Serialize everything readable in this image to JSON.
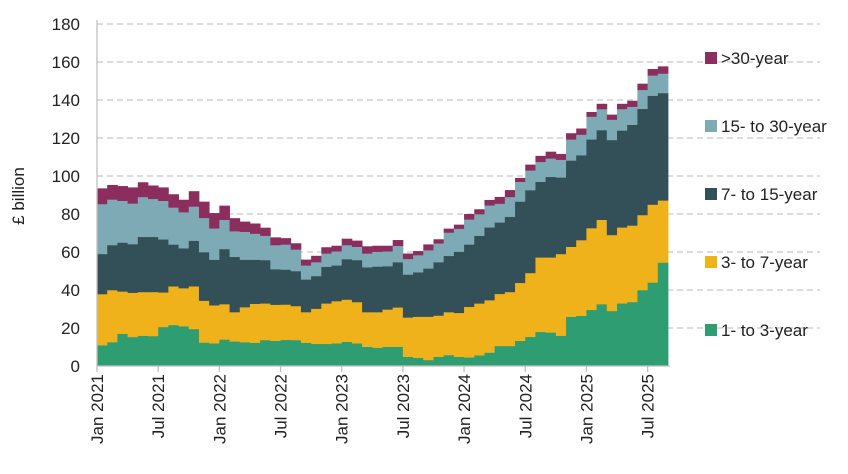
{
  "chart_data": {
    "type": "bar",
    "stacked": true,
    "style": "stepped stacked area",
    "title": "",
    "xlabel": "",
    "ylabel": "£ billion",
    "ylim": [
      0,
      180
    ],
    "yticks": [
      0,
      20,
      40,
      60,
      80,
      100,
      120,
      140,
      160,
      180
    ],
    "grid": "horizontal dashed",
    "legend_placement": "right",
    "x": [
      "Jan 2021",
      "Feb 2021",
      "Mar 2021",
      "Apr 2021",
      "May 2021",
      "Jun 2021",
      "Jul 2021",
      "Aug 2021",
      "Sep 2021",
      "Oct 2021",
      "Nov 2021",
      "Dec 2021",
      "Jan 2022",
      "Feb 2022",
      "Mar 2022",
      "Apr 2022",
      "May 2022",
      "Jun 2022",
      "Jul 2022",
      "Aug 2022",
      "Sep 2022",
      "Oct 2022",
      "Nov 2022",
      "Dec 2022",
      "Jan 2023",
      "Feb 2023",
      "Mar 2023",
      "Apr 2023",
      "May 2023",
      "Jun 2023",
      "Jul 2023",
      "Aug 2023",
      "Sep 2023",
      "Oct 2023",
      "Nov 2023",
      "Dec 2023",
      "Jan 2024",
      "Feb 2024",
      "Mar 2024",
      "Apr 2024",
      "May 2024",
      "Jun 2024",
      "Jul 2024",
      "Aug 2024",
      "Sep 2024",
      "Oct 2024",
      "Nov 2024",
      "Dec 2024",
      "Jan 2025",
      "Feb 2025",
      "Mar 2025",
      "Apr 2025",
      "May 2025",
      "Jun 2025",
      "Jul 2025",
      "Aug 2025"
    ],
    "xtick_labels": [
      "Jan 2021",
      "Jul 2021",
      "Jan 2022",
      "Jul 2022",
      "Jan 2023",
      "Jul 2023",
      "Jan 2024",
      "Jul 2024",
      "Jan 2025",
      "Jul 2025"
    ],
    "series": [
      {
        "name": "1- to 3-year",
        "color": "#2e9e72",
        "values": [
          11,
          12.6,
          17,
          15.3,
          16,
          15.8,
          20.6,
          21.6,
          21,
          19.5,
          12.4,
          12,
          14,
          13,
          12.6,
          12.3,
          13.7,
          13.3,
          13.8,
          13.7,
          12.3,
          11.7,
          11.7,
          12,
          12.8,
          12,
          10.2,
          9.7,
          10.2,
          10.2,
          4.9,
          4.4,
          3.2,
          4.9,
          5.8,
          4.9,
          4.6,
          5.7,
          7.1,
          10.6,
          10.6,
          13.3,
          15.4,
          18,
          17.7,
          16,
          26,
          26.5,
          29.6,
          32.6,
          29,
          33,
          33.7,
          40,
          44,
          54.5
        ]
      },
      {
        "name": "3- to 7-year",
        "color": "#f0b21a",
        "values": [
          26.9,
          27.4,
          22.3,
          23.3,
          23,
          23.2,
          18.2,
          20.4,
          20,
          22.5,
          22,
          20,
          18.6,
          15.4,
          18.4,
          20.5,
          19.3,
          19,
          18.6,
          17.9,
          16.1,
          18.5,
          21.3,
          22.2,
          22.2,
          21.7,
          18.2,
          18.7,
          19.6,
          20.7,
          20.7,
          21.6,
          22.8,
          21.7,
          22.6,
          23.1,
          26.6,
          27.3,
          27.6,
          27.4,
          28.4,
          30.5,
          33.6,
          39.2,
          39.5,
          43,
          36.8,
          39.8,
          43,
          44.4,
          40,
          40,
          40.3,
          39.5,
          41,
          32.7
        ]
      },
      {
        "name": "7- to 15-year",
        "color": "#334f57",
        "values": [
          21.1,
          23.7,
          25.7,
          25.6,
          29,
          29,
          27.9,
          22,
          21,
          24,
          25.6,
          24,
          29,
          29.1,
          25,
          23.2,
          22.8,
          18.7,
          18.4,
          18.4,
          17.2,
          17.2,
          19.3,
          18.8,
          21.3,
          22.1,
          23.6,
          24,
          22.8,
          23.8,
          22.6,
          23.4,
          25.4,
          28.1,
          29.6,
          32.2,
          32.8,
          35.6,
          38.3,
          37.6,
          39.6,
          42.8,
          43.6,
          39.8,
          42.4,
          40.3,
          45.4,
          44.7,
          46.7,
          47.2,
          50,
          51,
          53,
          55.9,
          57.3,
          56.5
        ]
      },
      {
        "name": "15- to 30-year",
        "color": "#7daab5",
        "values": [
          26.3,
          24,
          22,
          21.4,
          21,
          20,
          20.3,
          19.5,
          19,
          18,
          18,
          16.5,
          15.4,
          13.5,
          14.7,
          13.7,
          12.8,
          12.7,
          13.2,
          11.4,
          7.4,
          7.3,
          7,
          7.4,
          7.4,
          7,
          7.3,
          7.8,
          7.8,
          8.6,
          8.2,
          9,
          9.6,
          9.9,
          12.3,
          12.1,
          13.2,
          11.4,
          11.6,
          9.9,
          10.4,
          10.4,
          10.4,
          10.5,
          9.7,
          9.3,
          11.1,
          10.8,
          12,
          11.1,
          10.7,
          11.3,
          9.5,
          10,
          10.7,
          10.3
        ]
      },
      {
        "name": ">30-year",
        "color": "#8b2e5e",
        "values": [
          8.2,
          7.6,
          7.7,
          8.4,
          7.7,
          7,
          7,
          6.9,
          6.5,
          8,
          8.5,
          8,
          7.4,
          6.8,
          5.3,
          5.3,
          4.2,
          4,
          3.3,
          3.2,
          3,
          3.3,
          3.2,
          2.9,
          3.3,
          3.2,
          3.7,
          3.1,
          2.9,
          3,
          2.8,
          2.1,
          3,
          2.1,
          2,
          2.1,
          2.8,
          2.5,
          2.8,
          3.5,
          3.6,
          2,
          3,
          3.1,
          3.5,
          3,
          3.2,
          3.2,
          2.4,
          2.7,
          2.6,
          2.7,
          3.1,
          3.2,
          3.3,
          3.7
        ]
      }
    ]
  },
  "legend_order": [
    4,
    3,
    2,
    1,
    0
  ]
}
